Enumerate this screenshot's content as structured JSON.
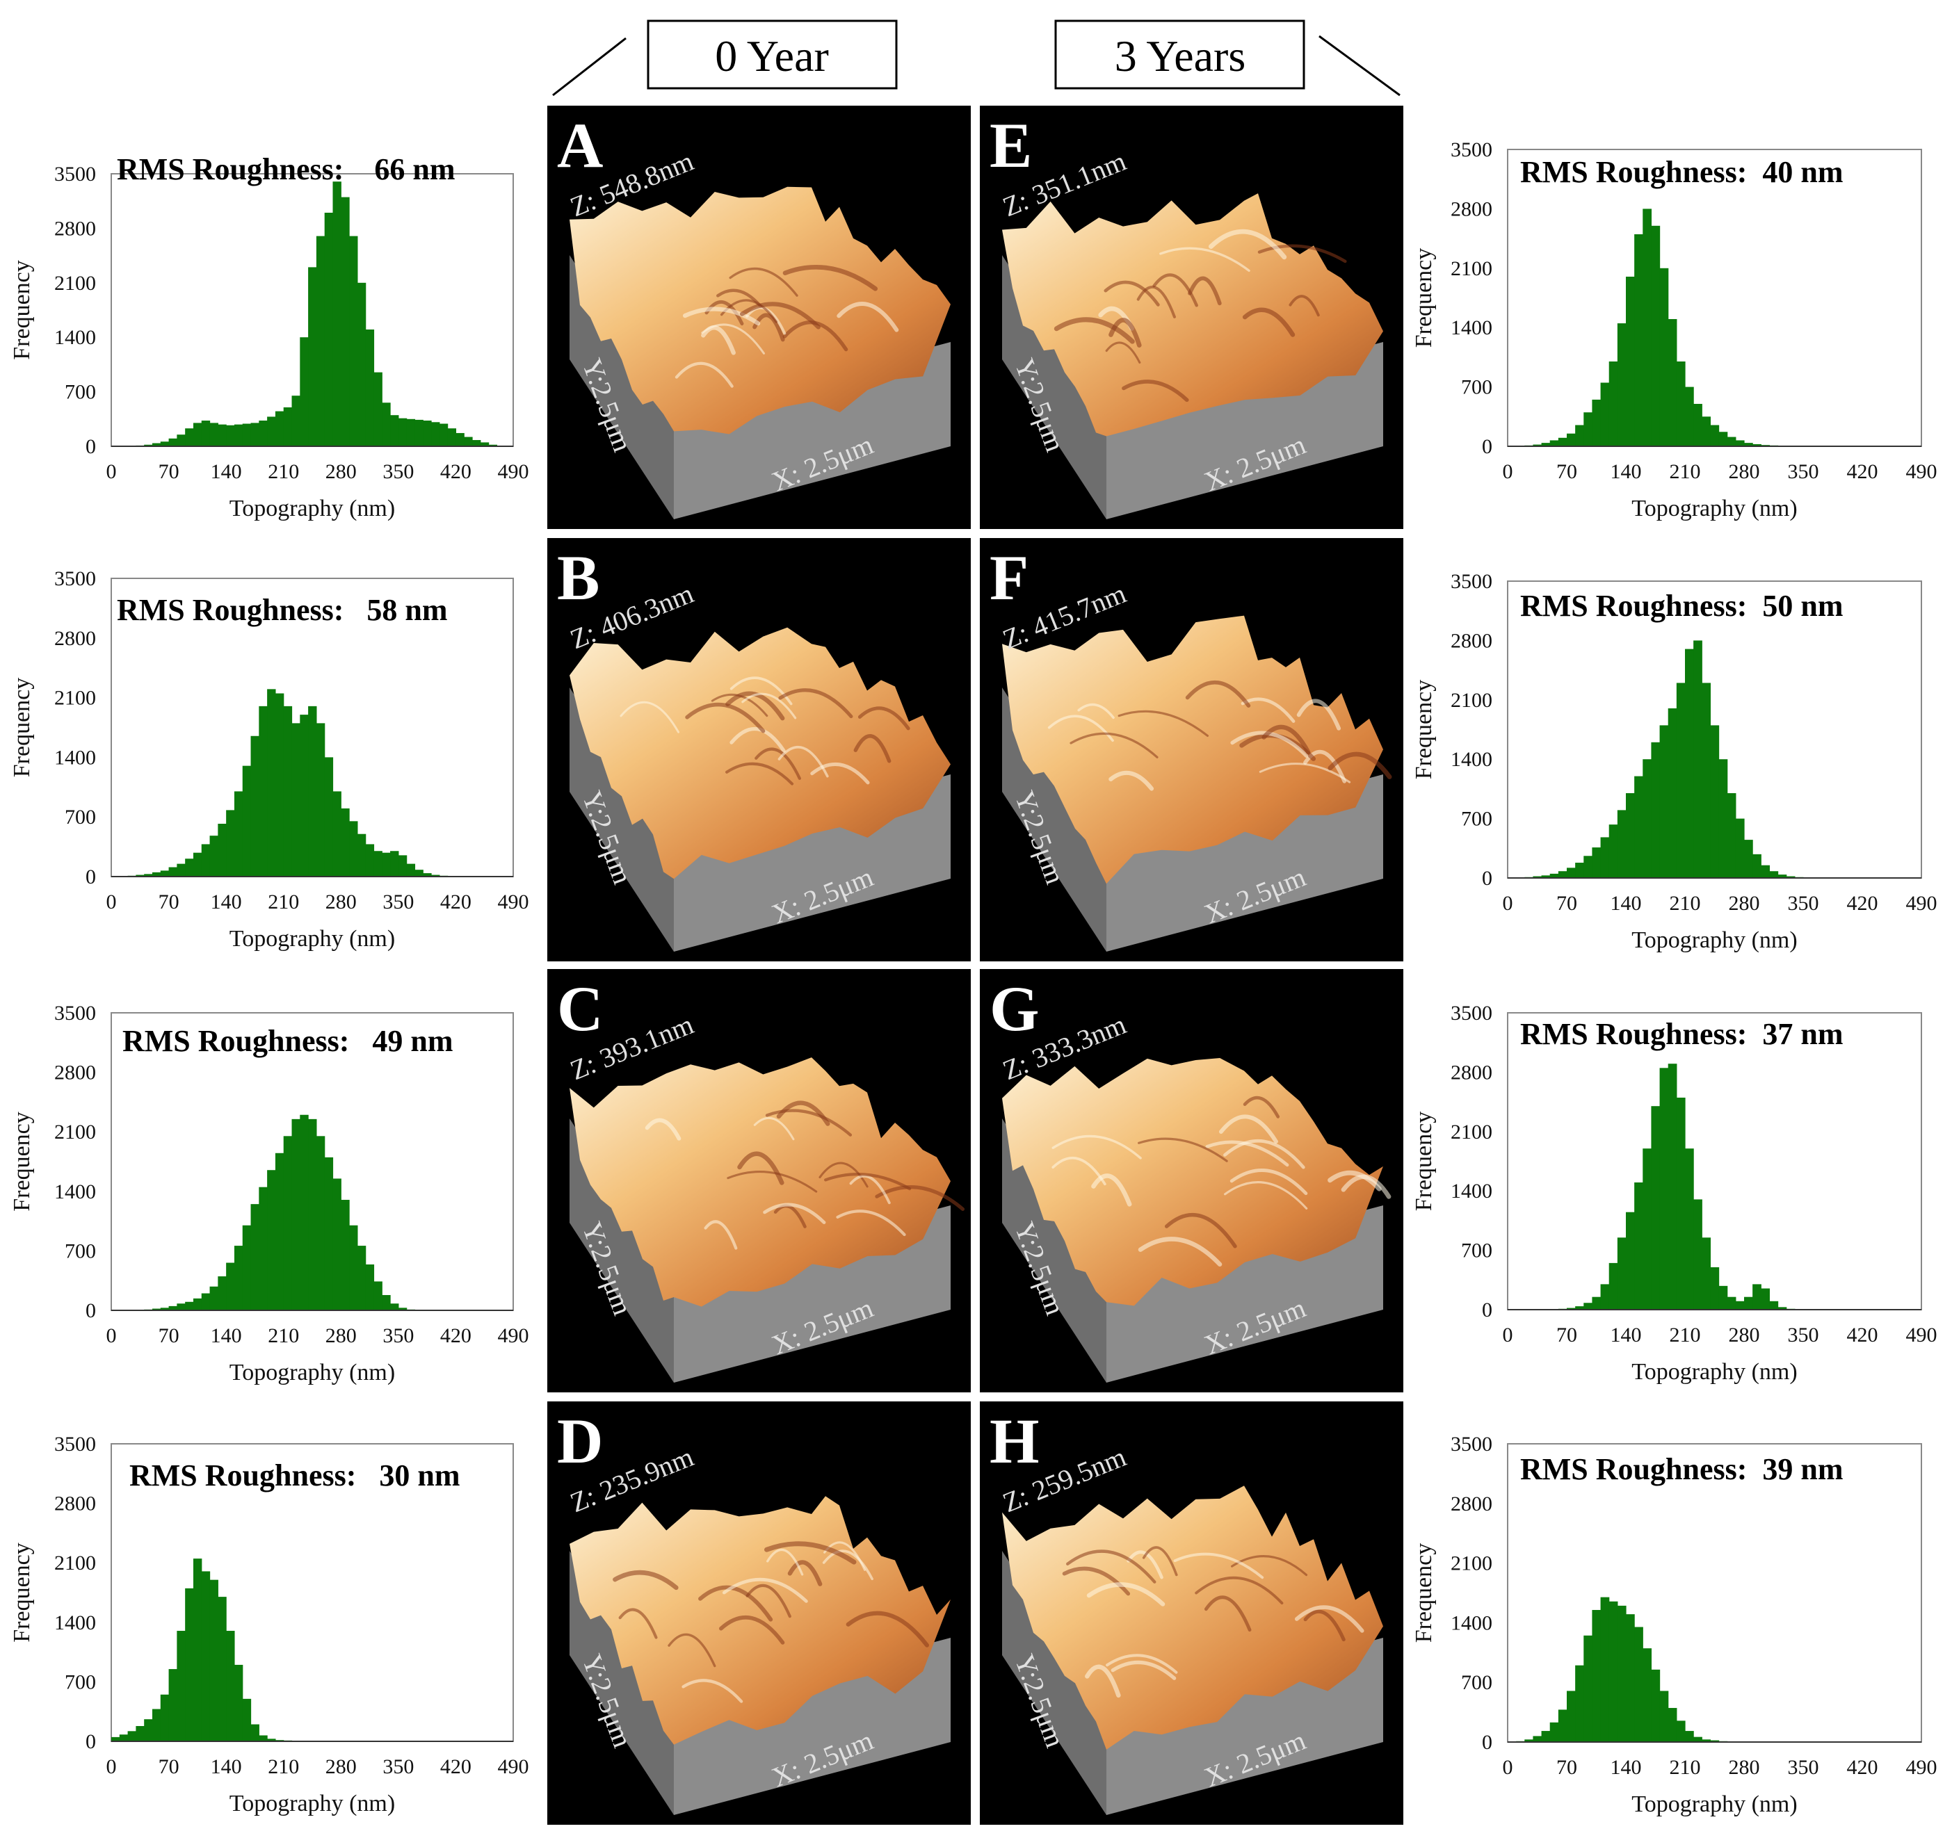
{
  "header": {
    "left_label": "0 Year",
    "right_label": "3 Years"
  },
  "colors": {
    "histogram_fill": "#0b7a0b",
    "afm_background": "#000000",
    "afm_surface_light": "#fbe3ba",
    "afm_surface_mid": "#e8a256",
    "afm_surface_dark": "#8a3a1a",
    "afm_base": "#8c8c8c"
  },
  "afm_panels": [
    {
      "letter": "A",
      "z_label": "Z: 548.8nm",
      "y_label": "Y:2.5μm",
      "x_label": "X: 2.5μm",
      "group": "0 Year"
    },
    {
      "letter": "B",
      "z_label": "Z: 406.3nm",
      "y_label": "Y:2.5μm",
      "x_label": "X: 2.5μm",
      "group": "0 Year"
    },
    {
      "letter": "C",
      "z_label": "Z: 393.1nm",
      "y_label": "Y:2.5μm",
      "x_label": "X: 2.5μm",
      "group": "0 Year"
    },
    {
      "letter": "D",
      "z_label": "Z: 235.9nm",
      "y_label": "Y:2.5μm",
      "x_label": "X: 2.5μm",
      "group": "0 Year"
    },
    {
      "letter": "E",
      "z_label": "Z: 351.1nm",
      "y_label": "Y:2.5μm",
      "x_label": "X: 2.5μm",
      "group": "3 Years"
    },
    {
      "letter": "F",
      "z_label": "Z: 415.7nm",
      "y_label": "Y:2.5μm",
      "x_label": "X: 2.5μm",
      "group": "3 Years"
    },
    {
      "letter": "G",
      "z_label": "Z: 333.3nm",
      "y_label": "Y:2.5μm",
      "x_label": "X: 2.5μm",
      "group": "3 Years"
    },
    {
      "letter": "H",
      "z_label": "Z: 259.5nm",
      "y_label": "Y:2.5μm",
      "x_label": "X: 2.5μm",
      "group": "3 Years"
    }
  ],
  "chart_data": [
    {
      "type": "bar",
      "panel": "A",
      "annotation": "RMS Roughness:    66 nm",
      "xlabel": "Topography (nm)",
      "ylabel": "Frequency",
      "xlim": [
        0,
        490
      ],
      "ylim": [
        0,
        3500
      ],
      "xticks": [
        0,
        70,
        140,
        210,
        280,
        350,
        420,
        490
      ],
      "yticks": [
        0,
        700,
        1400,
        2100,
        2800,
        3500
      ],
      "grid": false,
      "x": [
        0,
        10,
        20,
        30,
        40,
        50,
        60,
        70,
        80,
        90,
        100,
        110,
        120,
        130,
        140,
        150,
        160,
        170,
        180,
        190,
        200,
        210,
        220,
        230,
        240,
        250,
        260,
        270,
        280,
        290,
        300,
        310,
        320,
        330,
        340,
        350,
        360,
        370,
        380,
        390,
        400,
        410,
        420,
        430,
        440,
        450,
        460,
        470,
        480,
        490
      ],
      "values": [
        0,
        0,
        5,
        10,
        20,
        40,
        60,
        100,
        150,
        230,
        300,
        330,
        300,
        280,
        270,
        280,
        290,
        300,
        330,
        380,
        450,
        500,
        650,
        1400,
        2300,
        2700,
        3000,
        3400,
        3200,
        2700,
        2100,
        1500,
        950,
        560,
        400,
        360,
        350,
        340,
        330,
        310,
        290,
        230,
        170,
        120,
        80,
        50,
        20,
        5,
        0,
        0
      ]
    },
    {
      "type": "bar",
      "panel": "B",
      "annotation": "RMS Roughness:   58 nm",
      "xlabel": "Topography (nm)",
      "ylabel": "Frequency",
      "xlim": [
        0,
        490
      ],
      "ylim": [
        0,
        3500
      ],
      "xticks": [
        0,
        70,
        140,
        210,
        280,
        350,
        420,
        490
      ],
      "yticks": [
        0,
        700,
        1400,
        2100,
        2800,
        3500
      ],
      "grid": false,
      "x": [
        0,
        10,
        20,
        30,
        40,
        50,
        60,
        70,
        80,
        90,
        100,
        110,
        120,
        130,
        140,
        150,
        160,
        170,
        180,
        190,
        200,
        210,
        220,
        230,
        240,
        250,
        260,
        270,
        280,
        290,
        300,
        310,
        320,
        330,
        340,
        350,
        360,
        370,
        380,
        390,
        400,
        410,
        420,
        430,
        440,
        450,
        460,
        470,
        480,
        490
      ],
      "values": [
        0,
        5,
        10,
        20,
        30,
        50,
        70,
        110,
        150,
        210,
        280,
        380,
        480,
        620,
        780,
        1000,
        1300,
        1650,
        2000,
        2200,
        2150,
        2000,
        1800,
        1900,
        2000,
        1800,
        1400,
        1000,
        800,
        650,
        500,
        380,
        300,
        280,
        300,
        250,
        150,
        80,
        40,
        20,
        10,
        5,
        0,
        0,
        0,
        0,
        0,
        0,
        0,
        0
      ]
    },
    {
      "type": "bar",
      "panel": "C",
      "annotation": "RMS Roughness:   49 nm",
      "xlabel": "Topography (nm)",
      "ylabel": "Frequency",
      "xlim": [
        0,
        490
      ],
      "ylim": [
        0,
        3500
      ],
      "xticks": [
        0,
        70,
        140,
        210,
        280,
        350,
        420,
        490
      ],
      "yticks": [
        0,
        700,
        1400,
        2100,
        2800,
        3500
      ],
      "grid": false,
      "x": [
        0,
        10,
        20,
        30,
        40,
        50,
        60,
        70,
        80,
        90,
        100,
        110,
        120,
        130,
        140,
        150,
        160,
        170,
        180,
        190,
        200,
        210,
        220,
        230,
        240,
        250,
        260,
        270,
        280,
        290,
        300,
        310,
        320,
        330,
        340,
        350,
        360,
        370,
        380,
        390,
        400,
        410,
        420,
        430,
        440,
        450,
        460,
        470,
        480,
        490
      ],
      "values": [
        0,
        0,
        0,
        5,
        10,
        20,
        30,
        50,
        80,
        100,
        140,
        200,
        280,
        400,
        560,
        760,
        1000,
        1250,
        1450,
        1650,
        1850,
        2050,
        2250,
        2300,
        2250,
        2050,
        1800,
        1550,
        1300,
        1000,
        760,
        540,
        340,
        180,
        80,
        30,
        10,
        5,
        0,
        0,
        0,
        0,
        0,
        0,
        0,
        0,
        0,
        0,
        0,
        0
      ]
    },
    {
      "type": "bar",
      "panel": "D",
      "annotation": "RMS Roughness:   30 nm",
      "xlabel": "Topography (nm)",
      "ylabel": "Frequency",
      "xlim": [
        0,
        490
      ],
      "ylim": [
        0,
        3500
      ],
      "xticks": [
        0,
        70,
        140,
        210,
        280,
        350,
        420,
        490
      ],
      "yticks": [
        0,
        700,
        1400,
        2100,
        2800,
        3500
      ],
      "grid": false,
      "x": [
        0,
        10,
        20,
        30,
        40,
        50,
        60,
        70,
        80,
        90,
        100,
        110,
        120,
        130,
        140,
        150,
        160,
        170,
        180,
        190,
        200,
        210,
        220,
        230,
        240,
        250,
        260,
        270,
        280,
        290,
        300,
        310,
        320,
        330,
        340,
        350,
        360,
        370,
        380,
        390,
        400,
        410,
        420,
        430,
        440,
        450,
        460,
        470,
        480,
        490
      ],
      "values": [
        50,
        80,
        120,
        180,
        260,
        380,
        550,
        850,
        1300,
        1800,
        2150,
        2000,
        1900,
        1700,
        1300,
        900,
        500,
        200,
        70,
        30,
        15,
        10,
        5,
        0,
        0,
        0,
        0,
        0,
        0,
        0,
        0,
        0,
        0,
        0,
        0,
        0,
        0,
        0,
        0,
        0,
        0,
        0,
        0,
        0,
        0,
        0,
        0,
        0,
        0,
        0
      ]
    },
    {
      "type": "bar",
      "panel": "E",
      "annotation": "RMS Roughness:  40 nm",
      "xlabel": "Topography (nm)",
      "ylabel": "Frequency",
      "xlim": [
        0,
        490
      ],
      "ylim": [
        0,
        3500
      ],
      "xticks": [
        0,
        70,
        140,
        210,
        280,
        350,
        420,
        490
      ],
      "yticks": [
        0,
        700,
        1400,
        2100,
        2800,
        3500
      ],
      "grid": false,
      "x": [
        0,
        10,
        20,
        30,
        40,
        50,
        60,
        70,
        80,
        90,
        100,
        110,
        120,
        130,
        140,
        150,
        160,
        170,
        180,
        190,
        200,
        210,
        220,
        230,
        240,
        250,
        260,
        270,
        280,
        290,
        300,
        310,
        320,
        330,
        340,
        350,
        360,
        370,
        380,
        390,
        400,
        410,
        420,
        430,
        440,
        450,
        460,
        470,
        480,
        490
      ],
      "values": [
        0,
        5,
        10,
        20,
        40,
        70,
        100,
        150,
        250,
        400,
        550,
        750,
        1000,
        1450,
        2000,
        2500,
        2800,
        2600,
        2100,
        1500,
        1000,
        700,
        500,
        350,
        250,
        170,
        110,
        70,
        40,
        25,
        15,
        10,
        5,
        0,
        0,
        0,
        0,
        0,
        0,
        0,
        0,
        0,
        0,
        0,
        0,
        0,
        0,
        0,
        0,
        0
      ]
    },
    {
      "type": "bar",
      "panel": "F",
      "annotation": "RMS Roughness:  50 nm",
      "xlabel": "Topography (nm)",
      "ylabel": "Frequency",
      "xlim": [
        0,
        490
      ],
      "ylim": [
        0,
        3500
      ],
      "xticks": [
        0,
        70,
        140,
        210,
        280,
        350,
        420,
        490
      ],
      "yticks": [
        0,
        700,
        1400,
        2100,
        2800,
        3500
      ],
      "grid": false,
      "x": [
        0,
        10,
        20,
        30,
        40,
        50,
        60,
        70,
        80,
        90,
        100,
        110,
        120,
        130,
        140,
        150,
        160,
        170,
        180,
        190,
        200,
        210,
        220,
        230,
        240,
        250,
        260,
        270,
        280,
        290,
        300,
        310,
        320,
        330,
        340,
        350,
        360,
        370,
        380,
        390,
        400,
        410,
        420,
        430,
        440,
        450,
        460,
        470,
        480,
        490
      ],
      "values": [
        0,
        5,
        10,
        20,
        30,
        50,
        80,
        120,
        180,
        260,
        360,
        480,
        630,
        800,
        1000,
        1200,
        1400,
        1600,
        1800,
        2000,
        2300,
        2700,
        2800,
        2300,
        1800,
        1400,
        1000,
        700,
        450,
        280,
        150,
        80,
        40,
        20,
        10,
        5,
        0,
        0,
        0,
        0,
        0,
        0,
        0,
        0,
        0,
        0,
        0,
        0,
        0,
        0
      ]
    },
    {
      "type": "bar",
      "panel": "G",
      "annotation": "RMS Roughness:  37 nm",
      "xlabel": "Topography (nm)",
      "ylabel": "Frequency",
      "xlim": [
        0,
        490
      ],
      "ylim": [
        0,
        3500
      ],
      "xticks": [
        0,
        70,
        140,
        210,
        280,
        350,
        420,
        490
      ],
      "yticks": [
        0,
        700,
        1400,
        2100,
        2800,
        3500
      ],
      "grid": false,
      "x": [
        0,
        10,
        20,
        30,
        40,
        50,
        60,
        70,
        80,
        90,
        100,
        110,
        120,
        130,
        140,
        150,
        160,
        170,
        180,
        190,
        200,
        210,
        220,
        230,
        240,
        250,
        260,
        270,
        280,
        290,
        300,
        310,
        320,
        330,
        340,
        350,
        360,
        370,
        380,
        390,
        400,
        410,
        420,
        430,
        440,
        450,
        460,
        470,
        480,
        490
      ],
      "values": [
        0,
        0,
        0,
        0,
        0,
        5,
        10,
        20,
        40,
        80,
        150,
        300,
        550,
        850,
        1150,
        1500,
        1900,
        2400,
        2850,
        2900,
        2500,
        1900,
        1300,
        850,
        500,
        280,
        150,
        100,
        150,
        300,
        250,
        100,
        30,
        10,
        0,
        0,
        0,
        0,
        0,
        0,
        0,
        0,
        0,
        0,
        0,
        0,
        0,
        0,
        0,
        0
      ]
    },
    {
      "type": "bar",
      "panel": "H",
      "annotation": "RMS Roughness:  39 nm",
      "xlabel": "Topography (nm)",
      "ylabel": "Frequency",
      "xlim": [
        0,
        490
      ],
      "ylim": [
        0,
        3500
      ],
      "xticks": [
        0,
        70,
        140,
        210,
        280,
        350,
        420,
        490
      ],
      "yticks": [
        0,
        700,
        1400,
        2100,
        2800,
        3500
      ],
      "grid": false,
      "x": [
        0,
        10,
        20,
        30,
        40,
        50,
        60,
        70,
        80,
        90,
        100,
        110,
        120,
        130,
        140,
        150,
        160,
        170,
        180,
        190,
        200,
        210,
        220,
        230,
        240,
        250,
        260,
        270,
        280,
        290,
        300,
        310,
        320,
        330,
        340,
        350,
        360,
        370,
        380,
        390,
        400,
        410,
        420,
        430,
        440,
        450,
        460,
        470,
        480,
        490
      ],
      "values": [
        0,
        10,
        30,
        70,
        130,
        230,
        380,
        600,
        900,
        1250,
        1550,
        1700,
        1650,
        1600,
        1500,
        1350,
        1100,
        850,
        600,
        400,
        250,
        130,
        60,
        30,
        20,
        10,
        5,
        0,
        0,
        0,
        0,
        0,
        0,
        0,
        0,
        0,
        0,
        0,
        0,
        0,
        0,
        0,
        0,
        0,
        0,
        0,
        0,
        0,
        0,
        0
      ]
    }
  ]
}
